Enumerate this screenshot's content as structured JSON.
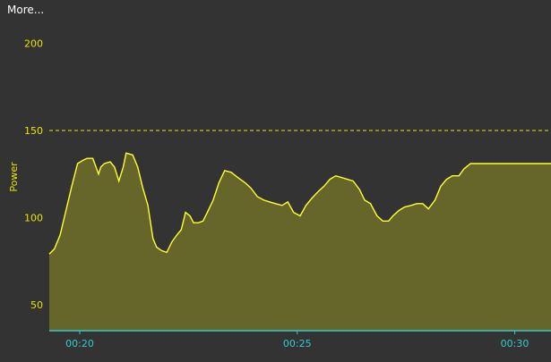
{
  "menu": {
    "more_label": "More..."
  },
  "colors": {
    "background": "#333333",
    "series_line": "#ffff33",
    "series_fill": "#66662a",
    "x_axis": "#33cccc",
    "y_axis_text": "#e6e600",
    "reference_line": "#e6e600"
  },
  "chart_data": {
    "type": "area",
    "ylabel": "Power",
    "xlabel": "",
    "ylim": [
      35,
      207
    ],
    "xlim": [
      1158,
      1850
    ],
    "y_ticks": [
      {
        "value": 200,
        "label": "200"
      },
      {
        "value": 150,
        "label": "150"
      },
      {
        "value": 100,
        "label": "100"
      },
      {
        "value": 50,
        "label": "50"
      }
    ],
    "x_ticks": [
      {
        "value": 1200,
        "label": "00:20"
      },
      {
        "value": 1500,
        "label": "00:25"
      },
      {
        "value": 1800,
        "label": "00:30"
      }
    ],
    "reference_line": {
      "value": 150,
      "style": "dashed"
    },
    "grid": false,
    "series": [
      {
        "x": [
          1158,
          1165,
          1173,
          1181,
          1189,
          1197,
          1205,
          1210,
          1218,
          1226,
          1229,
          1234,
          1242,
          1248,
          1254,
          1260,
          1264,
          1273,
          1280,
          1287,
          1294,
          1301,
          1306,
          1313,
          1320,
          1327,
          1334,
          1340,
          1346,
          1352,
          1357,
          1364,
          1370,
          1376,
          1384,
          1392,
          1400,
          1409,
          1418,
          1428,
          1436,
          1445,
          1454,
          1462,
          1470,
          1479,
          1487,
          1495,
          1504,
          1512,
          1520,
          1529,
          1537,
          1545,
          1553,
          1561,
          1569,
          1577,
          1586,
          1593,
          1601,
          1610,
          1618,
          1626,
          1632,
          1640,
          1648,
          1657,
          1665,
          1673,
          1681,
          1690,
          1698,
          1706,
          1714,
          1723,
          1730,
          1739,
          1746,
          1752,
          1758,
          1767,
          1775,
          1783,
          1791,
          1799,
          1807,
          1814,
          1821,
          1828,
          1836,
          1844,
          1850
        ],
        "values": [
          79,
          82,
          90,
          104,
          118,
          131,
          133,
          134,
          134,
          125,
          129,
          131,
          132,
          129,
          121,
          129,
          137,
          136,
          129,
          117,
          107,
          88,
          83,
          81,
          80,
          86,
          90,
          93,
          103,
          101,
          97,
          97,
          98,
          103,
          110,
          120,
          127,
          126,
          123,
          120,
          117,
          112,
          110,
          109,
          108,
          107,
          109,
          103,
          101,
          107,
          111,
          115,
          118,
          122,
          124,
          123,
          122,
          121,
          116,
          110,
          108,
          101,
          98,
          98,
          101,
          104,
          106,
          107,
          108,
          108,
          105,
          110,
          118,
          122,
          124,
          124,
          128,
          131,
          131,
          131,
          131,
          131,
          131,
          131,
          131,
          131,
          131,
          131,
          131,
          131,
          131,
          131,
          131
        ]
      }
    ]
  }
}
